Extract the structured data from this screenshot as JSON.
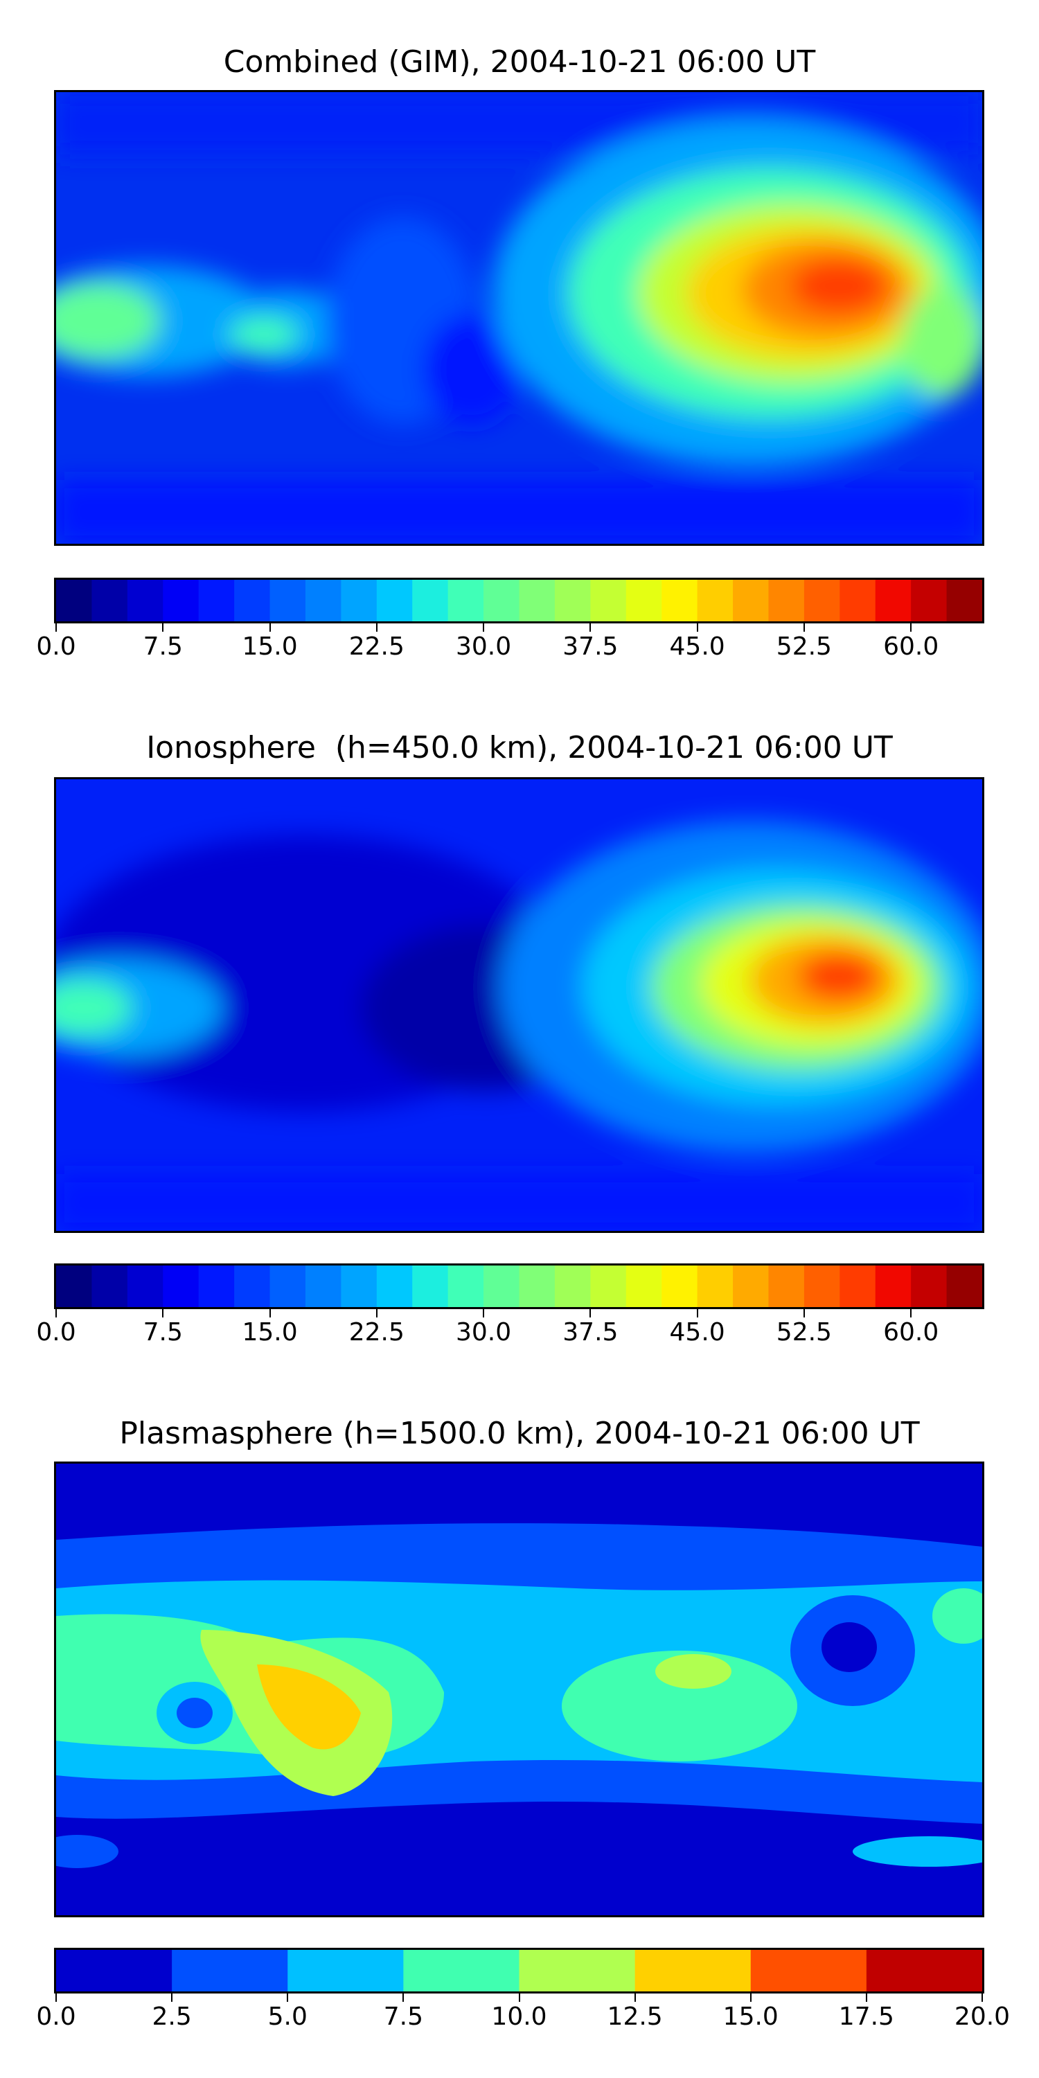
{
  "panels": [
    {
      "title": "Combined (GIM), 2004-10-21 06:00 UT",
      "colorbar": {
        "vmin": 0,
        "vmax": 65,
        "levels": 26,
        "colors": [
          "#00007f",
          "#0000a8",
          "#0000d1",
          "#0000f6",
          "#0018ff",
          "#003cff",
          "#0060ff",
          "#0080ff",
          "#00a4ff",
          "#00c8fe",
          "#1ceedf",
          "#40ffb7",
          "#60ff96",
          "#80ff77",
          "#a0ff57",
          "#c4ff33",
          "#e4ff13",
          "#fff200",
          "#ffce00",
          "#ffaa00",
          "#ff8600",
          "#ff6000",
          "#ff3c00",
          "#f10800",
          "#c40000",
          "#960000"
        ],
        "tick_labels": [
          "0.0",
          "7.5",
          "15.0",
          "22.5",
          "30.0",
          "37.5",
          "45.0",
          "52.5",
          "60.0"
        ]
      }
    },
    {
      "title": "Ionosphere  (h=450.0 km), 2004-10-21 06:00 UT",
      "colorbar": {
        "vmin": 0,
        "vmax": 65,
        "levels": 26,
        "colors": [
          "#00007f",
          "#0000a8",
          "#0000d1",
          "#0000f6",
          "#0018ff",
          "#003cff",
          "#0060ff",
          "#0080ff",
          "#00a4ff",
          "#00c8fe",
          "#1ceedf",
          "#40ffb7",
          "#60ff96",
          "#80ff77",
          "#a0ff57",
          "#c4ff33",
          "#e4ff13",
          "#fff200",
          "#ffce00",
          "#ffaa00",
          "#ff8600",
          "#ff6000",
          "#ff3c00",
          "#f10800",
          "#c40000",
          "#960000"
        ],
        "tick_labels": [
          "0.0",
          "7.5",
          "15.0",
          "22.5",
          "30.0",
          "37.5",
          "45.0",
          "52.5",
          "60.0"
        ]
      }
    },
    {
      "title": "Plasmasphere (h=1500.0 km), 2004-10-21 06:00 UT",
      "colorbar": {
        "vmin": 0,
        "vmax": 20,
        "levels": 8,
        "colors": [
          "#0000cd",
          "#0050ff",
          "#00c0ff",
          "#40ffb0",
          "#b0ff50",
          "#ffd000",
          "#ff5000",
          "#c00000"
        ],
        "tick_labels": [
          "0.0",
          "2.5",
          "5.0",
          "7.5",
          "10.0",
          "12.5",
          "15.0",
          "17.5",
          "20.0"
        ]
      }
    }
  ]
}
